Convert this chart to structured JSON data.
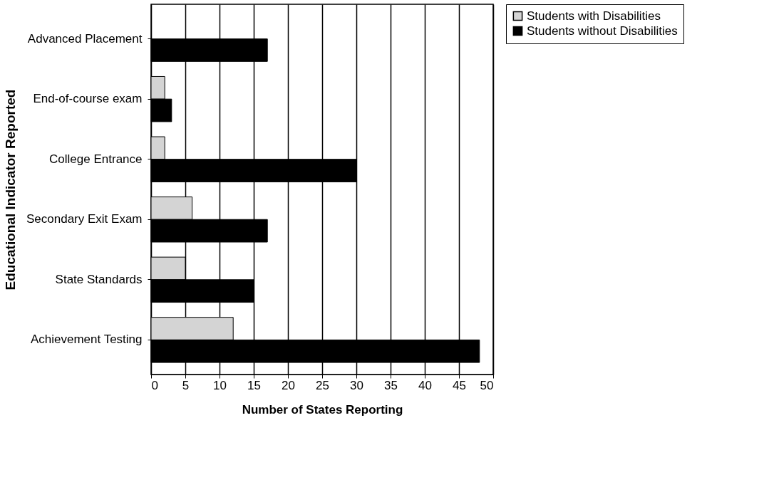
{
  "chart_data": {
    "type": "bar",
    "orientation": "horizontal",
    "xlabel": "Number of States Reporting",
    "ylabel": "Educational Indicator Reported",
    "categories": [
      "Advanced Placement",
      "End-of-course exam",
      "College Entrance",
      "Secondary Exit Exam",
      "State Standards",
      "Achievement Testing"
    ],
    "series": [
      {
        "name": "Students with Disabilities",
        "color": "#d4d4d4",
        "values": [
          0,
          2,
          2,
          6,
          5,
          12
        ]
      },
      {
        "name": "Students without Disabilities",
        "color": "#000000",
        "values": [
          17,
          3,
          30,
          17,
          15,
          48
        ]
      }
    ],
    "xlim": [
      0,
      50
    ],
    "xticks": [
      0,
      5,
      10,
      15,
      20,
      25,
      30,
      35,
      40,
      45,
      50
    ],
    "grid": "x",
    "legend": "right"
  }
}
